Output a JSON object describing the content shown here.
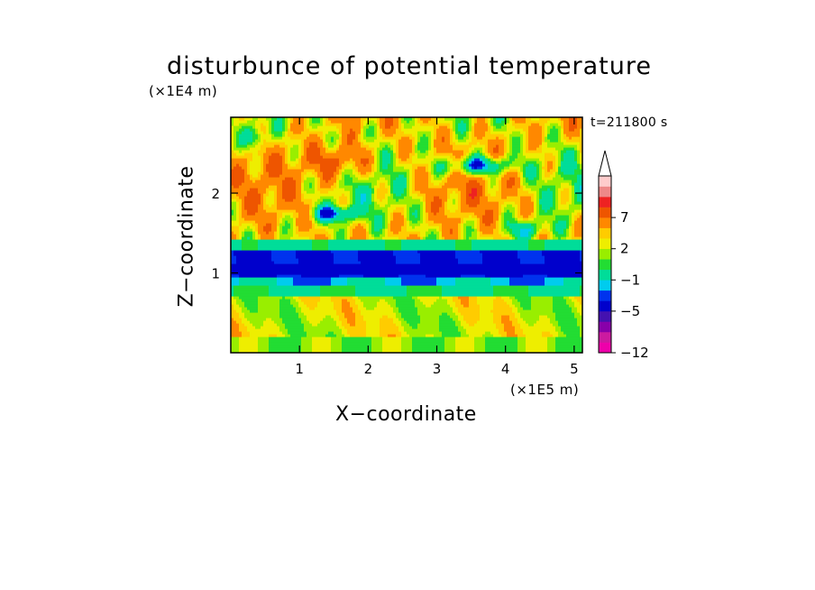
{
  "chart_data": {
    "type": "heatmap",
    "title": "disturbunce of potential temperature",
    "xlabel": "X−coordinate",
    "ylabel": "Z−coordinate",
    "x_unit": "(×1E5 m)",
    "z_unit": "(×1E4 m)",
    "time_label": "t=211800 s",
    "xlim": [
      0,
      5.12
    ],
    "ylim": [
      0,
      2.95
    ],
    "x_ticks": [
      1,
      2,
      3,
      4,
      5
    ],
    "y_ticks": [
      1,
      2
    ],
    "colorbar": {
      "levels": [
        -12,
        -11,
        -9,
        -7,
        -5,
        -4,
        -3,
        -1,
        0,
        1,
        2,
        3,
        5,
        7,
        9,
        11
      ],
      "tick_labels": [
        "−12",
        "−5",
        "−1",
        "2",
        "7"
      ],
      "tick_values": [
        -12,
        -5,
        -1,
        2,
        7
      ],
      "colors": [
        "#ee00aa",
        "#cc1aa0",
        "#8800aa",
        "#4411b0",
        "#0000cc",
        "#0033ee",
        "#00ccee",
        "#00dd99",
        "#22dd33",
        "#99ee00",
        "#eeee00",
        "#ffcc00",
        "#ff8800",
        "#ee5500",
        "#ee2222",
        "#ee8888",
        "#ffcccc"
      ],
      "extend": "max"
    },
    "bands": [
      {
        "z_range": [
          0.0,
          0.2
        ],
        "description_value": 0.5
      },
      {
        "z_range": [
          0.2,
          0.7
        ],
        "description_value": 1.5
      },
      {
        "z_range": [
          0.7,
          0.9
        ],
        "description_value": -1.0
      },
      {
        "z_range": [
          0.9,
          1.3
        ],
        "description_value": -5.0
      },
      {
        "z_range": [
          1.3,
          1.45
        ],
        "description_value": -1.5
      },
      {
        "z_range": [
          1.45,
          2.95
        ],
        "description_value": 3.0
      }
    ]
  }
}
